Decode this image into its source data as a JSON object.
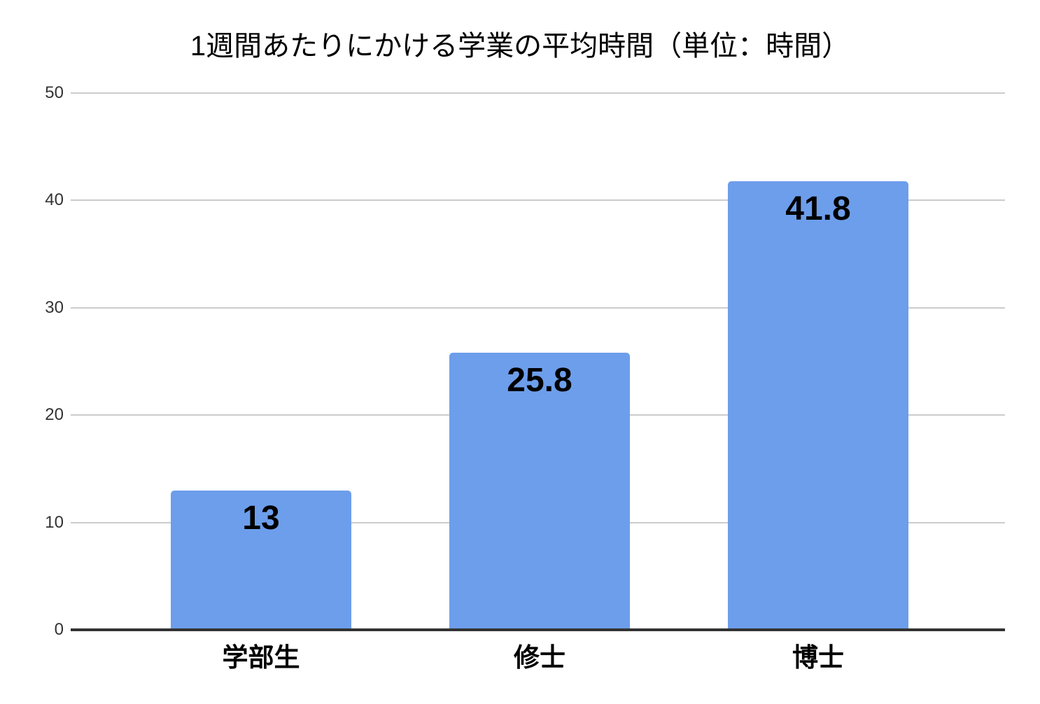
{
  "chart_data": {
    "type": "bar",
    "title": "1週間あたりにかける学業の平均時間（単位：時間）",
    "categories": [
      "学部生",
      "修士",
      "博士"
    ],
    "values": [
      13,
      25.8,
      41.8
    ],
    "value_labels": [
      "13",
      "25.8",
      "41.8"
    ],
    "xlabel": "",
    "ylabel": "",
    "ylim": [
      0,
      50
    ],
    "yticks": [
      0,
      10,
      20,
      30,
      40,
      50
    ],
    "grid": "horizontal-only",
    "legend": "none"
  },
  "colors": {
    "bar": "#6d9eeb",
    "gridline": "#cccccc",
    "axis_line": "#333333",
    "tick_text": "#333333",
    "text": "#000000",
    "background": "#ffffff"
  }
}
